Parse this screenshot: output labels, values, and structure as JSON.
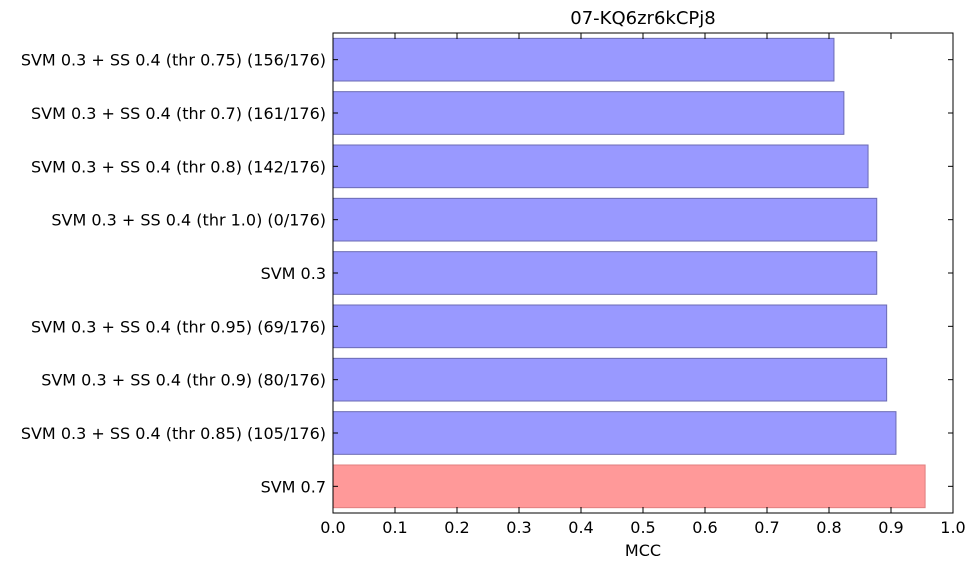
{
  "chart_data": {
    "type": "bar",
    "orientation": "horizontal",
    "title": "07-KQ6zr6kCPj8",
    "xlabel": "MCC",
    "ylabel": "",
    "xlim": [
      0.0,
      1.0
    ],
    "xticks": [
      "0.0",
      "0.1",
      "0.2",
      "0.3",
      "0.4",
      "0.5",
      "0.6",
      "0.7",
      "0.8",
      "0.9",
      "1.0"
    ],
    "categories": [
      "SVM 0.3 + SS 0.4 (thr 0.75) (156/176)",
      "SVM 0.3 + SS 0.4 (thr 0.7) (161/176)",
      "SVM 0.3 + SS 0.4 (thr 0.8) (142/176)",
      "SVM 0.3 + SS 0.4 (thr 1.0) (0/176)",
      "SVM 0.3",
      "SVM 0.3 + SS 0.4 (thr 0.95) (69/176)",
      "SVM 0.3 + SS 0.4 (thr 0.9) (80/176)",
      "SVM 0.3 + SS 0.4 (thr 0.85) (105/176)",
      "SVM 0.7"
    ],
    "values": [
      0.808,
      0.824,
      0.863,
      0.877,
      0.877,
      0.893,
      0.893,
      0.908,
      0.955
    ],
    "bar_colors": [
      "#9999ff",
      "#9999ff",
      "#9999ff",
      "#9999ff",
      "#9999ff",
      "#9999ff",
      "#9999ff",
      "#9999ff",
      "#ff9999"
    ],
    "bar_edge_colors": [
      "#6b6bb3",
      "#6b6bb3",
      "#6b6bb3",
      "#6b6bb3",
      "#6b6bb3",
      "#6b6bb3",
      "#6b6bb3",
      "#6b6bb3",
      "#e07f7f"
    ],
    "grid": false,
    "legend": "none"
  }
}
